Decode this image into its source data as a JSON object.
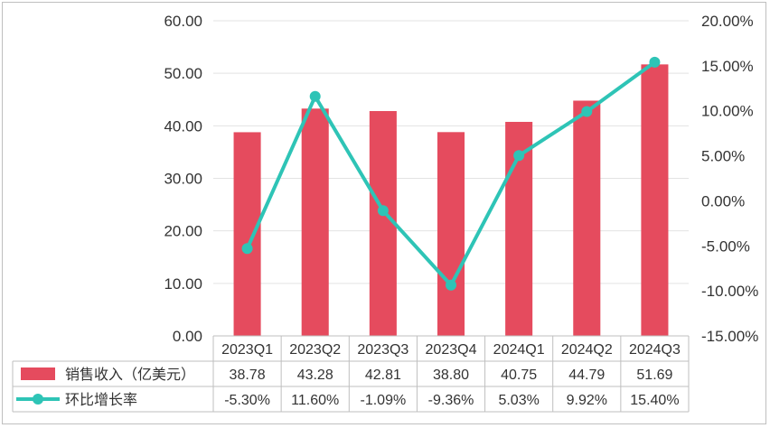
{
  "chart_data": {
    "type": "bar",
    "categories": [
      "2023Q1",
      "2023Q2",
      "2023Q3",
      "2023Q4",
      "2024Q1",
      "2024Q2",
      "2024Q3"
    ],
    "series": [
      {
        "name": "销售收入（亿美元）",
        "type": "bar",
        "axis": "left",
        "values": [
          38.78,
          43.28,
          42.81,
          38.8,
          40.75,
          44.79,
          51.69
        ],
        "labels": [
          "38.78",
          "43.28",
          "42.81",
          "38.80",
          "40.75",
          "44.79",
          "51.69"
        ],
        "color": "#e54b5e"
      },
      {
        "name": "环比增长率",
        "type": "line",
        "axis": "right",
        "values": [
          -5.3,
          11.6,
          -1.09,
          -9.36,
          5.03,
          9.92,
          15.4
        ],
        "labels": [
          "-5.30%",
          "11.60%",
          "-1.09%",
          "-9.36%",
          "5.03%",
          "9.92%",
          "15.40%"
        ],
        "color": "#2ec4b6"
      }
    ],
    "y_left": {
      "range": [
        0,
        60
      ],
      "ticks": [
        "0.00",
        "10.00",
        "20.00",
        "30.00",
        "40.00",
        "50.00",
        "60.00"
      ]
    },
    "y_right": {
      "range": [
        -15,
        20
      ],
      "ticks": [
        "-15.00%",
        "-10.00%",
        "-5.00%",
        "0.00%",
        "5.00%",
        "10.00%",
        "15.00%",
        "20.00%"
      ]
    },
    "grid": true,
    "legend": "data-table"
  }
}
